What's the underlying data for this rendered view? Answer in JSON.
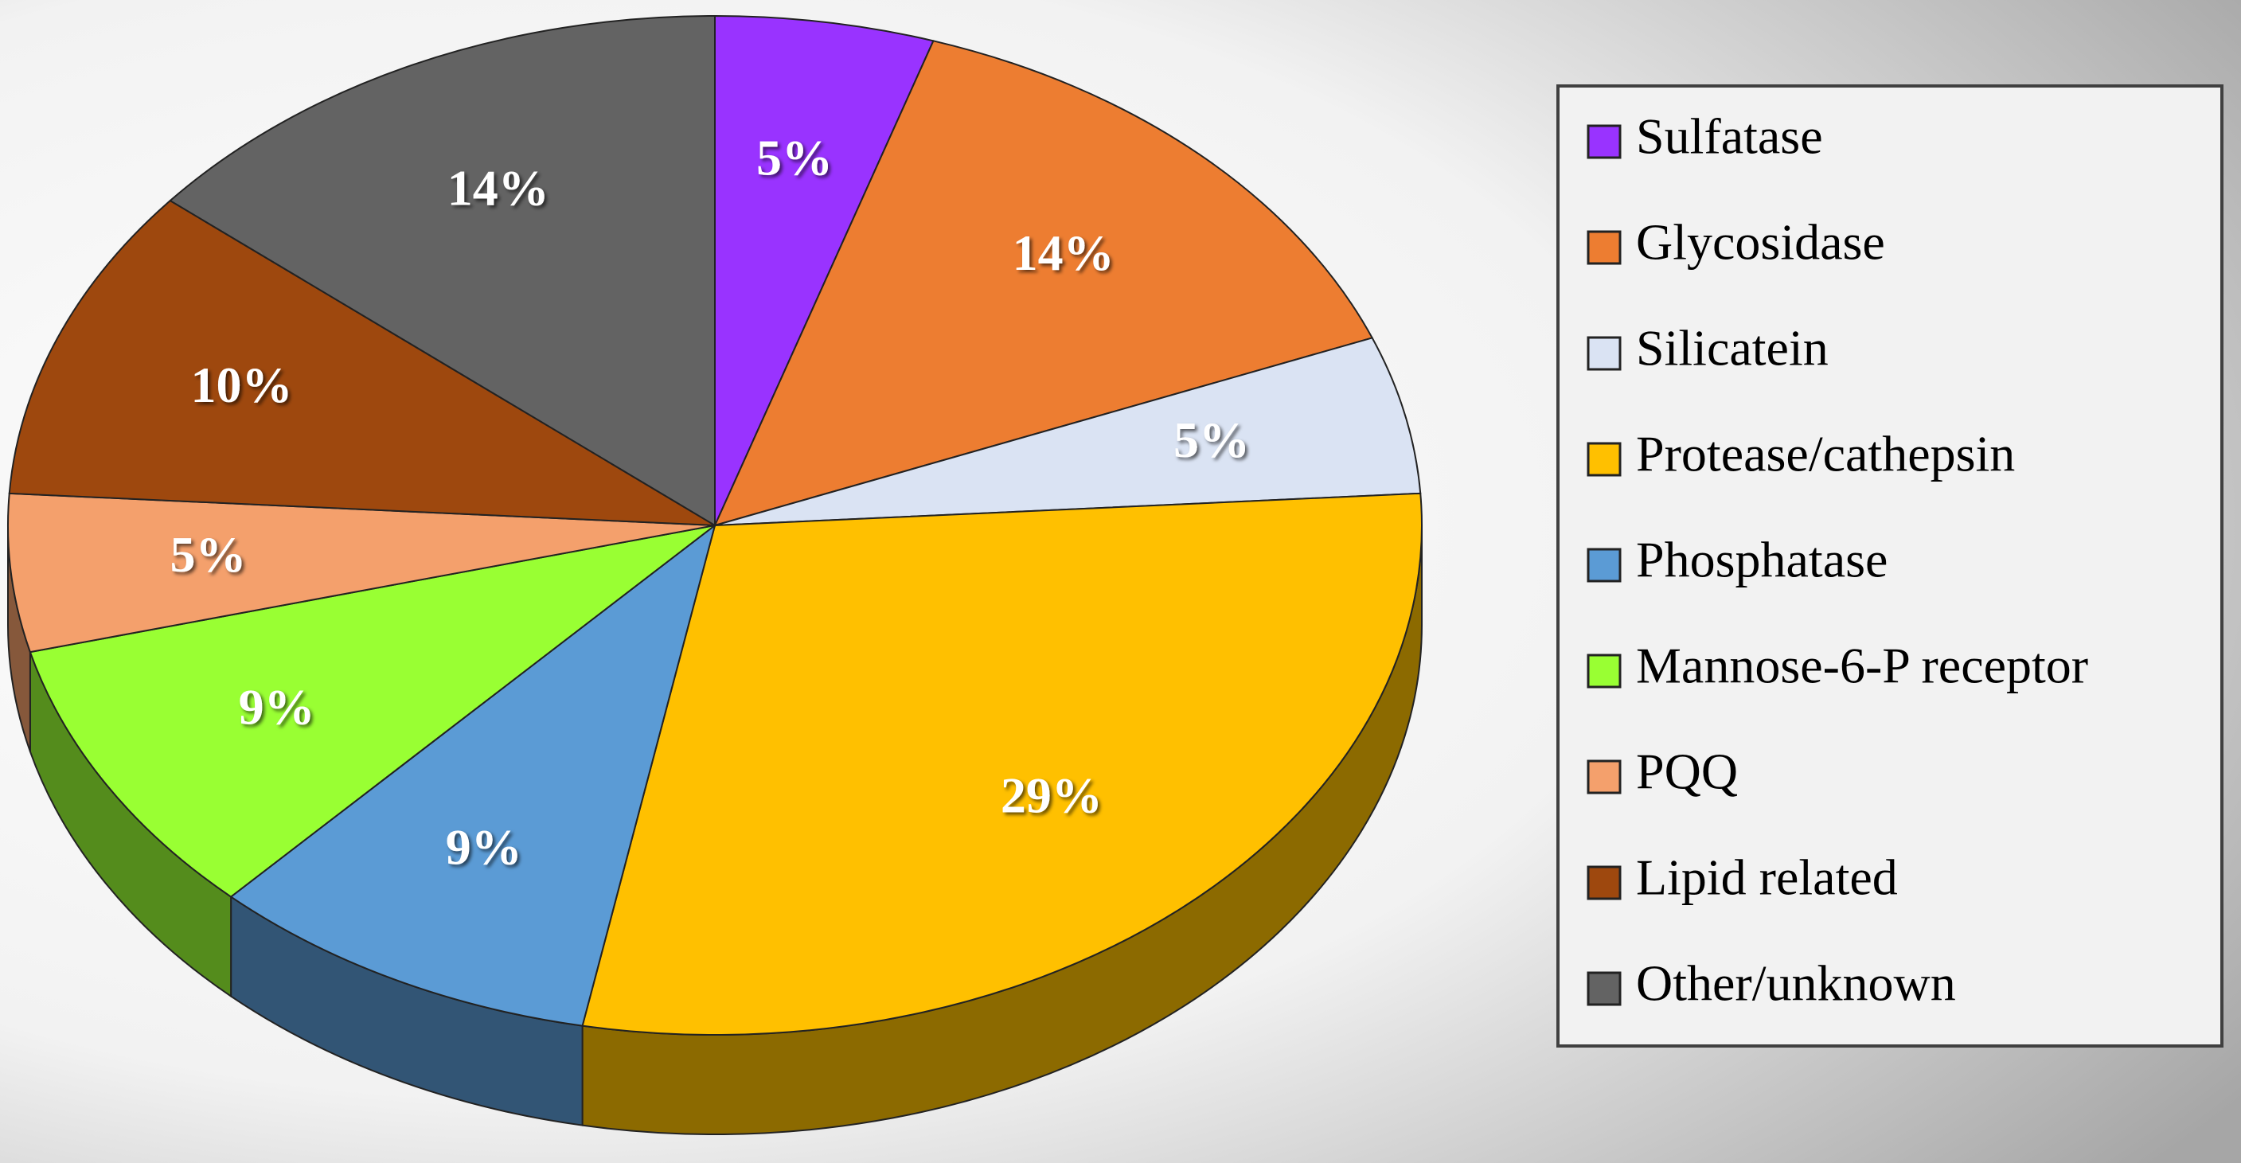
{
  "chart_data": {
    "type": "pie",
    "categories": [
      "Sulfatase",
      "Glycosidase",
      "Silicatein",
      "Protease/cathepsin",
      "Phosphatase",
      "Mannose-6-P receptor",
      "PQQ",
      "Lipid related",
      "Other/unknown"
    ],
    "values": [
      5,
      14,
      5,
      29,
      9,
      9,
      5,
      10,
      14
    ],
    "value_labels": [
      "5%",
      "14%",
      "5%",
      "29%",
      "9%",
      "9%",
      "5%",
      "10%",
      "14%"
    ],
    "colors": [
      "#9933ff",
      "#ed7d31",
      "#dae3f3",
      "#ffc000",
      "#5b9bd5",
      "#99ff33",
      "#f4a06c",
      "#9e480e",
      "#636363"
    ]
  }
}
